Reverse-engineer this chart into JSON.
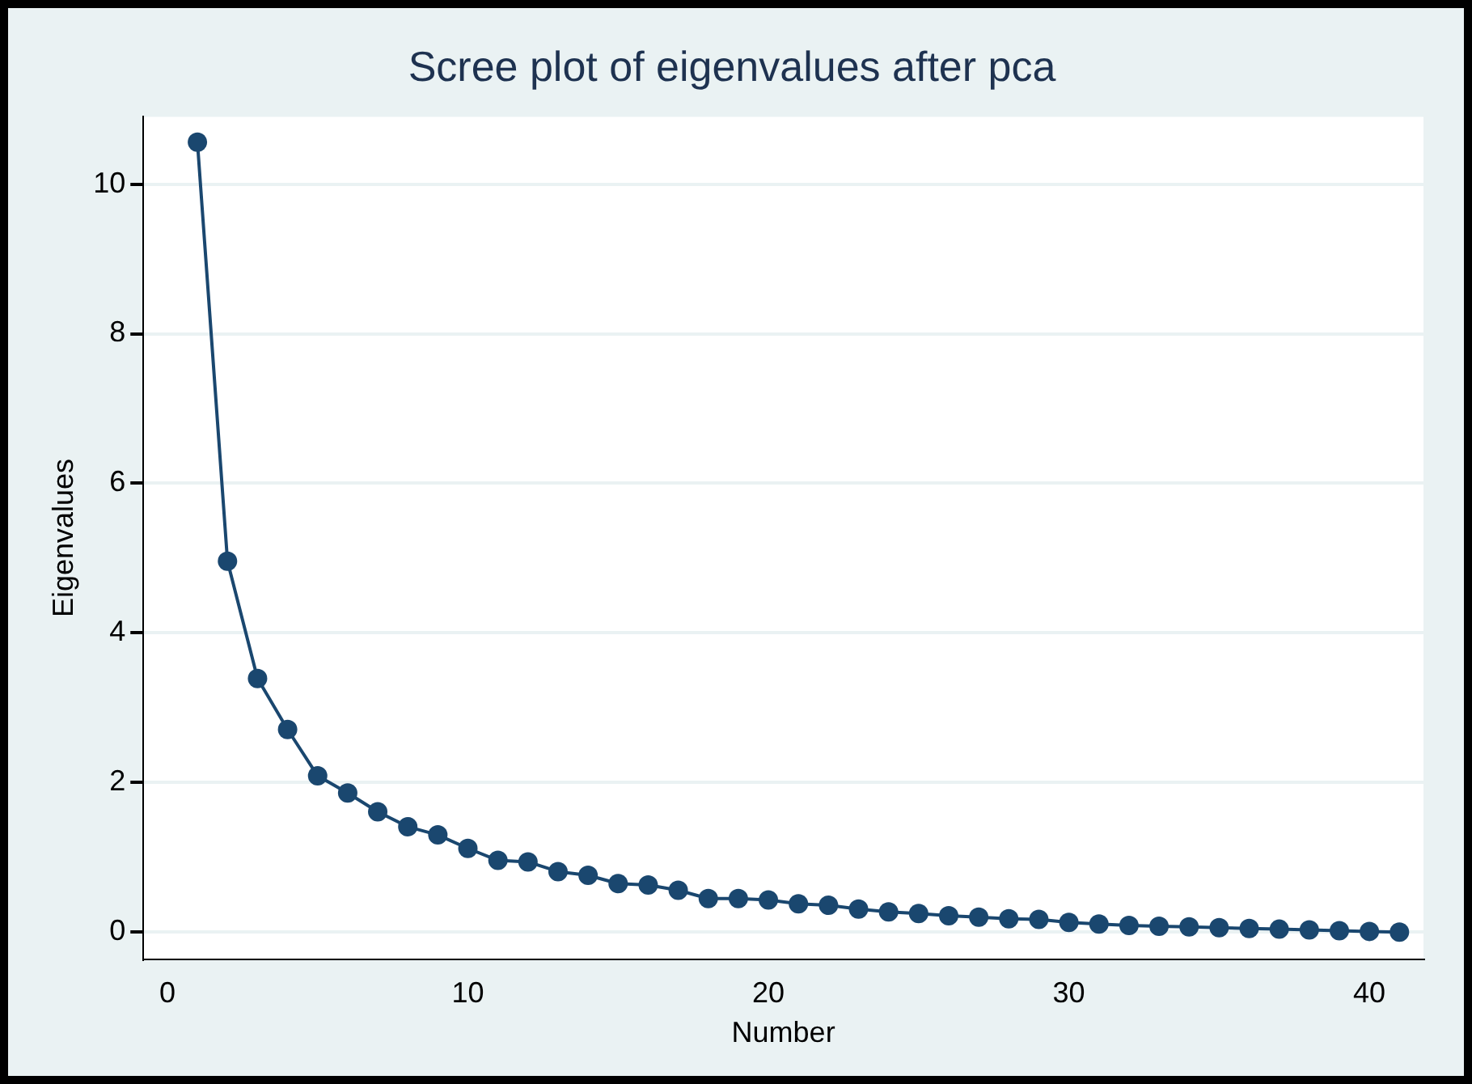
{
  "chart_data": {
    "type": "line",
    "title": "Scree plot of eigenvalues after pca",
    "xlabel": "Number",
    "ylabel": "Eigenvalues",
    "x": [
      1,
      2,
      3,
      4,
      5,
      6,
      7,
      8,
      9,
      10,
      11,
      12,
      13,
      14,
      15,
      16,
      17,
      18,
      19,
      20,
      21,
      22,
      23,
      24,
      25,
      26,
      27,
      28,
      29,
      30,
      31,
      32,
      33,
      34,
      35,
      36,
      37,
      38,
      39,
      40,
      41
    ],
    "series": [
      {
        "color": "#1a476f",
        "values": [
          10.56,
          4.96,
          3.39,
          2.71,
          2.09,
          1.86,
          1.61,
          1.41,
          1.3,
          1.12,
          0.96,
          0.94,
          0.81,
          0.76,
          0.65,
          0.63,
          0.56,
          0.45,
          0.45,
          0.43,
          0.38,
          0.36,
          0.31,
          0.27,
          0.25,
          0.22,
          0.2,
          0.18,
          0.17,
          0.13,
          0.11,
          0.09,
          0.08,
          0.07,
          0.06,
          0.05,
          0.04,
          0.03,
          0.02,
          0.01,
          0.0
        ]
      }
    ],
    "xlim": [
      -0.8,
      41.8
    ],
    "ylim": [
      -0.36,
      10.9
    ],
    "xticks": [
      0,
      10,
      20,
      30,
      40
    ],
    "yticks": [
      0,
      2,
      4,
      6,
      8,
      10
    ],
    "grid": "y",
    "legend": false,
    "marker": "circle",
    "line_style": "solid"
  }
}
